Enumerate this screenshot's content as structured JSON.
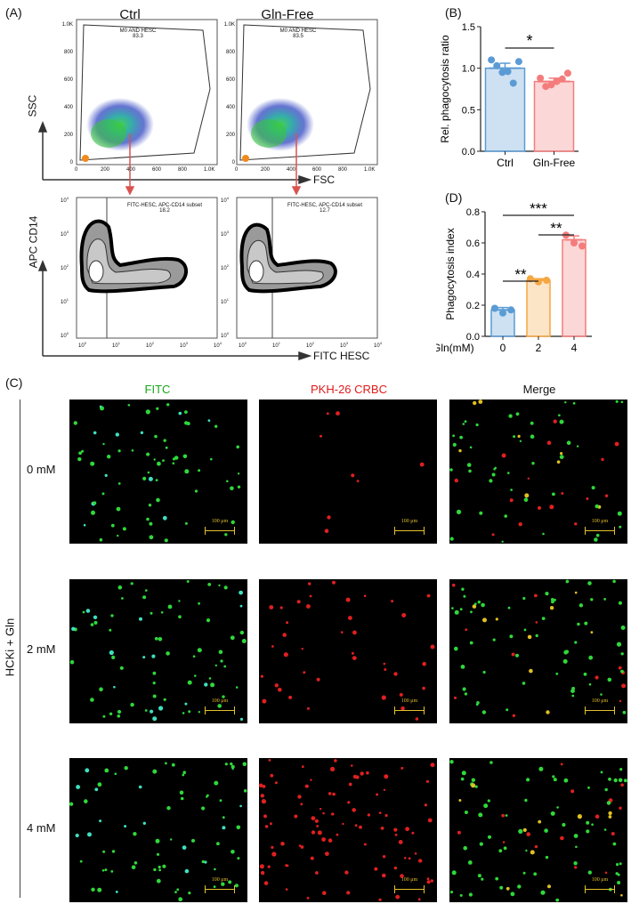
{
  "panels": {
    "A": {
      "letter": "(A)",
      "col_titles": [
        "Ctrl",
        "Gln-Free"
      ],
      "top_axes": {
        "y": "SSC",
        "x": "FSC"
      },
      "bottom_axes": {
        "y": "APC CD14",
        "x": "FITC HESC"
      },
      "top_ticks_x": [
        "0",
        "200",
        "400",
        "600",
        "800",
        "1.0K"
      ],
      "top_ticks_y": [
        "0",
        "200",
        "400",
        "600",
        "800",
        "1.0K"
      ],
      "gate_top": [
        {
          "name": "M0 AND HESC",
          "value": "83.3"
        },
        {
          "name": "M0 AND HESC",
          "value": "83.5"
        }
      ],
      "gate_bottom": [
        {
          "name": "FITC-HESC, APC-CD14 subset",
          "value": "18.2"
        },
        {
          "name": "FITC-HESC, APC-CD14 subset",
          "value": "12.7"
        }
      ],
      "log_base": "10",
      "log_exps": [
        "0",
        "1",
        "2",
        "3",
        "4"
      ]
    },
    "B": {
      "letter": "(B)",
      "significance": "*"
    },
    "C": {
      "letter": "(C)",
      "columns": [
        "FITC",
        "PKH-26 CRBC",
        "Merge"
      ],
      "rows": [
        "0 mM",
        "2 mM",
        "4 mM"
      ],
      "side_label": "HCKi + Gln",
      "scale_bar": "100 μm"
    },
    "D": {
      "letter": "(D)",
      "significance": [
        "**",
        "**",
        "***"
      ]
    }
  },
  "chart_data": [
    {
      "type": "bar",
      "panel": "B",
      "title": "",
      "xlabel": "",
      "ylabel": "Rel. phagocytosis ratio",
      "categories": [
        "Ctrl",
        "Gln-Free"
      ],
      "values": [
        1.0,
        0.84
      ],
      "errors": [
        0.06,
        0.04
      ],
      "points": [
        [
          1.1,
          1.03,
          0.95,
          0.96,
          0.82,
          1.08
        ],
        [
          0.88,
          0.78,
          0.8,
          0.84,
          0.87,
          0.94
        ]
      ],
      "colors": [
        "#5b9bd5",
        "#f47c7c"
      ],
      "ylim": [
        0,
        1.5
      ],
      "yticks": [
        0,
        0.5,
        1.0,
        1.5
      ],
      "ytick_labels": [
        "0.0",
        "0.5",
        "1.0",
        "1.5"
      ]
    },
    {
      "type": "bar",
      "panel": "D",
      "title": "",
      "xlabel": "Gln(mM)",
      "ylabel": "Phagocytosis index",
      "categories": [
        "0",
        "2",
        "4"
      ],
      "values": [
        0.17,
        0.36,
        0.62
      ],
      "errors": [
        0.015,
        0.01,
        0.025
      ],
      "points": [
        [
          0.18,
          0.15,
          0.17
        ],
        [
          0.37,
          0.35,
          0.36
        ],
        [
          0.65,
          0.6,
          0.58
        ]
      ],
      "colors": [
        "#5b9bd5",
        "#f5a742",
        "#f47c7c"
      ],
      "ylim": [
        0,
        0.8
      ],
      "yticks": [
        0,
        0.2,
        0.4,
        0.6,
        0.8
      ],
      "ytick_labels": [
        "0.0",
        "0.2",
        "0.4",
        "0.6",
        "0.8"
      ]
    }
  ]
}
